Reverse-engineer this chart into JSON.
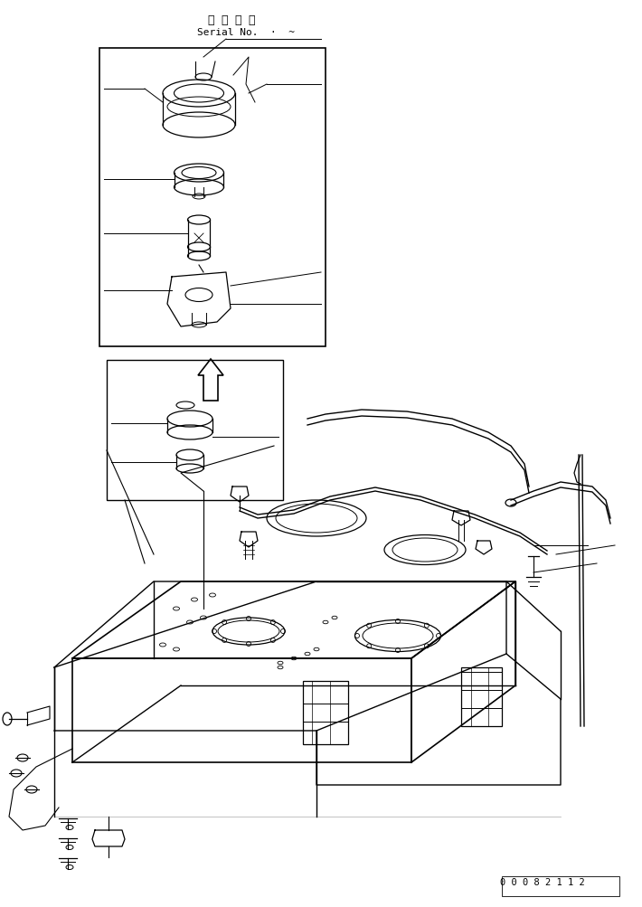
{
  "title_jp": "適 用 号 機",
  "title_en": "Serial No.  ·  ~",
  "part_number": "0 0 0 8 2 1 1 2",
  "bg_color": "#ffffff",
  "line_color": "#000000",
  "fig_width": 7.1,
  "fig_height": 10.04,
  "dpi": 100
}
